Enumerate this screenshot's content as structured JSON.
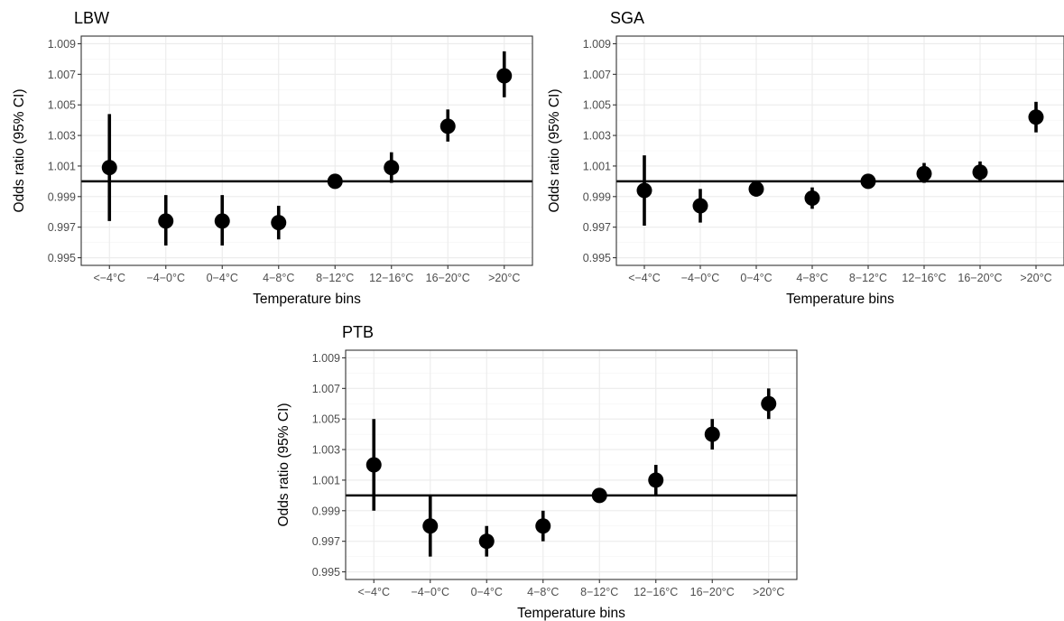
{
  "chart_data": [
    {
      "type": "scatter",
      "title": "LBW",
      "xlabel": "Temperature bins",
      "ylabel": "Odds ratio (95% CI)",
      "categories": [
        "<−4°C",
        "−4−0°C",
        "0−4°C",
        "4−8°C",
        "8−12°C",
        "12−16°C",
        "16−20°C",
        ">20°C"
      ],
      "yticks": [
        "0.995",
        "0.997",
        "0.999",
        "1.001",
        "1.003",
        "1.005",
        "1.007",
        "1.009"
      ],
      "ylim": [
        0.9945,
        1.0095
      ],
      "reference_line": 1.0,
      "grid": true,
      "series": [
        {
          "estimate": [
            1.0009,
            0.9974,
            0.9974,
            0.9973,
            1.0,
            1.0009,
            1.0036,
            1.0069
          ],
          "lower": [
            0.9974,
            0.9958,
            0.9958,
            0.9962,
            1.0,
            0.9999,
            1.0026,
            1.0055
          ],
          "upper": [
            1.0044,
            0.9991,
            0.9991,
            0.9984,
            1.0,
            1.0019,
            1.0047,
            1.0085
          ]
        }
      ]
    },
    {
      "type": "scatter",
      "title": "SGA",
      "xlabel": "Temperature bins",
      "ylabel": "Odds ratio (95% CI)",
      "categories": [
        "<−4°C",
        "−4−0°C",
        "0−4°C",
        "4−8°C",
        "8−12°C",
        "12−16°C",
        "16−20°C",
        ">20°C"
      ],
      "yticks": [
        "0.995",
        "0.997",
        "0.999",
        "1.001",
        "1.003",
        "1.005",
        "1.007",
        "1.009"
      ],
      "ylim": [
        0.9945,
        1.0095
      ],
      "reference_line": 1.0,
      "grid": true,
      "series": [
        {
          "estimate": [
            0.9994,
            0.9984,
            0.9995,
            0.9989,
            1.0,
            1.0005,
            1.0006,
            1.0042
          ],
          "lower": [
            0.9971,
            0.9973,
            0.999,
            0.9982,
            1.0,
            0.9999,
            1.0,
            1.0032
          ],
          "upper": [
            1.0017,
            0.9995,
            1.0,
            0.9996,
            1.0,
            1.0012,
            1.0013,
            1.0052
          ]
        }
      ]
    },
    {
      "type": "scatter",
      "title": "PTB",
      "xlabel": "Temperature bins",
      "ylabel": "Odds ratio (95% CI)",
      "categories": [
        "<−4°C",
        "−4−0°C",
        "0−4°C",
        "4−8°C",
        "8−12°C",
        "12−16°C",
        "16−20°C",
        ">20°C"
      ],
      "yticks": [
        "0.995",
        "0.997",
        "0.999",
        "1.001",
        "1.003",
        "1.005",
        "1.007",
        "1.009"
      ],
      "ylim": [
        0.9945,
        1.0095
      ],
      "reference_line": 1.0,
      "grid": true,
      "series": [
        {
          "estimate": [
            1.002,
            0.998,
            0.997,
            0.998,
            1.0,
            1.001,
            1.004,
            1.006
          ],
          "lower": [
            0.999,
            0.996,
            0.996,
            0.997,
            1.0,
            1.0,
            1.003,
            1.005
          ],
          "upper": [
            1.005,
            1.0,
            0.998,
            0.999,
            1.0,
            1.002,
            1.005,
            1.007
          ]
        }
      ]
    }
  ]
}
